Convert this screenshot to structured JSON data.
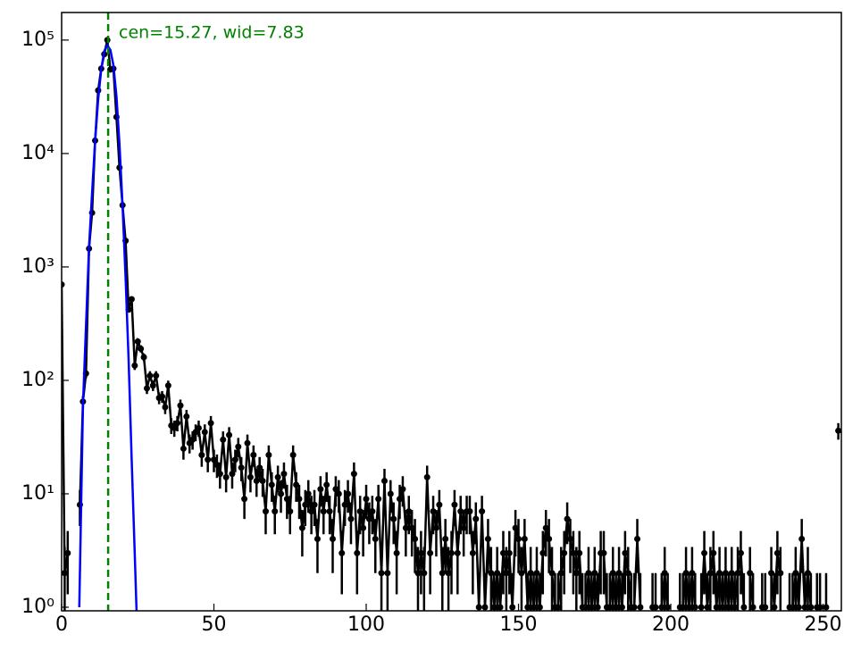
{
  "chart_data": {
    "type": "errorbar",
    "annotation": "cen=15.27, wid=7.83",
    "vline": {
      "x": 15.27,
      "color": "#008000"
    },
    "xlim": [
      0,
      256
    ],
    "xticks": [
      0,
      50,
      100,
      150,
      200,
      250
    ],
    "ylim": [
      0.93,
      175000
    ],
    "log_y": true,
    "yticks": [
      {
        "value": 1,
        "label": "10⁰"
      },
      {
        "value": 10,
        "label": "10¹"
      },
      {
        "value": 100,
        "label": "10²"
      },
      {
        "value": 1000,
        "label": "10³"
      },
      {
        "value": 10000,
        "label": "10⁴"
      },
      {
        "value": 100000,
        "label": "10⁵"
      }
    ],
    "series": [
      {
        "color": "#000000",
        "x": [
          0,
          1,
          2,
          3,
          4,
          5,
          6,
          7,
          8,
          9,
          10,
          11,
          12,
          13,
          14,
          15,
          16,
          17,
          18,
          19,
          20,
          21,
          22,
          23,
          24,
          25,
          26,
          27,
          28,
          29,
          30,
          31,
          32,
          33,
          34,
          35,
          36,
          37,
          38,
          39,
          40,
          41,
          42,
          43,
          44,
          45,
          46,
          47,
          48,
          49,
          50,
          51,
          52,
          53,
          54,
          55,
          56,
          57,
          58,
          59,
          60,
          61,
          62,
          63,
          64,
          65,
          66,
          67,
          68,
          69,
          70,
          71,
          72,
          73,
          74,
          75,
          76,
          77,
          78,
          79,
          80,
          81,
          82,
          83,
          84,
          85,
          86,
          87,
          88,
          89,
          90,
          91,
          92,
          93,
          94,
          95,
          96,
          97,
          98,
          99,
          100,
          101,
          102,
          103,
          104,
          105,
          106,
          107,
          108,
          109,
          110,
          111,
          112,
          113,
          114,
          115,
          116,
          117,
          118,
          119,
          120,
          121,
          122,
          123,
          124,
          125,
          126,
          127,
          128,
          129,
          130,
          131,
          132,
          133,
          134,
          135,
          136,
          137,
          138,
          139,
          140,
          141,
          142,
          143,
          144,
          145,
          146,
          147,
          148,
          149,
          150,
          151,
          152,
          153,
          154,
          155,
          156,
          157,
          158,
          159,
          160,
          161,
          162,
          163,
          164,
          165,
          166,
          167,
          168,
          169,
          170,
          171,
          172,
          173,
          174,
          175,
          176,
          177,
          178,
          179,
          180,
          181,
          182,
          183,
          184,
          185,
          186,
          187,
          188,
          189,
          190,
          191,
          192,
          193,
          194,
          195,
          196,
          197,
          198,
          199,
          200,
          201,
          202,
          203,
          204,
          205,
          206,
          207,
          208,
          209,
          210,
          211,
          212,
          213,
          214,
          215,
          216,
          217,
          218,
          219,
          220,
          221,
          222,
          223,
          224,
          225,
          226,
          227,
          228,
          229,
          230,
          231,
          232,
          233,
          234,
          235,
          236,
          237,
          238,
          239,
          240,
          241,
          242,
          243,
          244,
          245,
          246,
          247,
          248,
          249,
          250,
          251,
          252,
          253,
          254,
          255
        ],
        "values": [
          700,
          2,
          3,
          null,
          null,
          null,
          8,
          65,
          115,
          1450,
          3000,
          13000,
          36000,
          56000,
          75000,
          100000,
          55000,
          56000,
          21000,
          7500,
          3500,
          1700,
          420,
          520,
          135,
          220,
          190,
          160,
          85,
          110,
          90,
          110,
          70,
          72,
          58,
          90,
          40,
          38,
          42,
          60,
          25,
          48,
          28,
          30,
          35,
          38,
          22,
          35,
          20,
          42,
          20,
          18,
          15,
          30,
          14,
          33,
          15,
          20,
          26,
          17,
          9,
          28,
          14,
          22,
          13,
          17,
          13,
          7,
          22,
          12,
          7,
          14,
          10,
          15,
          9,
          7,
          22,
          12,
          9,
          5,
          8,
          10,
          7,
          8,
          4,
          11,
          7,
          12,
          7,
          4,
          11,
          10,
          3,
          8,
          10,
          6,
          15,
          3,
          7,
          5,
          9,
          6,
          7,
          4,
          9,
          2,
          13,
          2,
          10,
          6,
          3,
          9,
          11,
          5,
          7,
          5,
          4,
          2,
          3,
          2,
          14,
          3,
          7,
          5,
          8,
          2,
          4,
          2,
          3,
          8,
          3,
          7,
          5,
          7,
          7,
          3,
          6,
          1,
          7,
          1,
          4,
          2,
          1,
          2,
          1,
          3,
          2,
          3,
          1,
          5,
          4,
          2,
          4,
          1,
          2,
          1,
          2,
          1,
          3,
          5,
          4,
          2,
          1,
          1,
          2,
          3,
          6,
          4,
          3,
          2,
          3,
          1,
          1,
          2,
          1,
          2,
          1,
          3,
          3,
          1,
          1,
          2,
          1,
          2,
          1,
          3,
          2,
          1,
          1,
          4,
          1,
          null,
          null,
          null,
          1,
          1,
          null,
          1,
          2,
          1,
          null,
          null,
          null,
          1,
          1,
          2,
          1,
          2,
          1,
          null,
          1,
          3,
          1,
          2,
          3,
          1,
          2,
          1,
          2,
          1,
          2,
          1,
          2,
          3,
          1,
          null,
          2,
          1,
          null,
          null,
          1,
          1,
          null,
          2,
          1,
          3,
          2,
          null,
          null,
          1,
          1,
          2,
          1,
          4,
          1,
          2,
          1,
          null,
          1,
          1,
          null,
          1,
          null,
          null,
          null,
          36
        ],
        "errors": [
          26.5,
          1.4,
          1.7,
          null,
          null,
          null,
          2.8,
          8.1,
          10.7,
          38,
          55,
          114,
          190,
          237,
          274,
          316,
          235,
          237,
          145,
          87,
          59,
          41,
          20.5,
          22.8,
          11.6,
          14.8,
          13.8,
          12.6,
          9.2,
          10.5,
          9.5,
          10.5,
          8.4,
          8.5,
          7.6,
          9.5,
          6.3,
          6.2,
          6.5,
          7.7,
          5,
          6.9,
          5.3,
          5.5,
          5.9,
          6.2,
          4.7,
          5.9,
          4.5,
          6.5,
          4.5,
          4.2,
          3.9,
          5.5,
          3.7,
          5.7,
          3.9,
          4.5,
          5.1,
          4.1,
          3,
          5.3,
          3.7,
          4.7,
          3.6,
          4.1,
          3.6,
          2.6,
          4.7,
          3.5,
          2.6,
          3.7,
          3.2,
          3.9,
          3,
          2.6,
          4.7,
          3.5,
          3,
          2.2,
          2.8,
          3.2,
          2.6,
          2.8,
          2,
          3.3,
          2.6,
          3.5,
          2.6,
          2,
          3.3,
          3.2,
          1.7,
          2.8,
          3.2,
          2.4,
          3.9,
          1.7,
          2.6,
          2.2,
          3,
          2.4,
          2.6,
          2,
          3,
          1.4,
          3.6,
          1.4,
          3.2,
          2.4,
          1.7,
          3,
          3.3,
          2.2,
          2.6,
          2.2,
          2,
          1.4,
          1.7,
          1.4,
          3.7,
          1.7,
          2.6,
          2.2,
          2.8,
          1.4,
          2,
          1.4,
          1.7,
          2.8,
          1.7,
          2.6,
          2.2,
          2.6,
          2.6,
          1.7,
          2.4,
          1,
          2.6,
          1,
          2,
          1.4,
          1,
          1.4,
          1,
          1.7,
          1.4,
          1.7,
          1,
          2.2,
          2,
          1.4,
          2,
          1,
          1.4,
          1,
          1.4,
          1,
          1.7,
          2.2,
          2,
          1.4,
          1,
          1,
          1.4,
          1.7,
          2.4,
          2,
          1.7,
          1.4,
          1.7,
          1,
          1,
          1.4,
          1,
          1.4,
          1,
          1.7,
          1.7,
          1,
          1,
          1.4,
          1,
          1.4,
          1,
          1.7,
          1.4,
          1,
          1,
          2,
          1,
          null,
          null,
          null,
          1,
          1,
          null,
          1,
          1.4,
          1,
          null,
          null,
          null,
          1,
          1,
          1.4,
          1,
          1.4,
          1,
          null,
          1,
          1.7,
          1,
          1.4,
          1.7,
          1,
          1.4,
          1,
          1.4,
          1,
          1.4,
          1,
          1.4,
          1.7,
          1,
          null,
          1.4,
          1,
          null,
          null,
          1,
          1,
          null,
          1.4,
          1,
          1.7,
          1.4,
          null,
          null,
          1,
          1,
          1.4,
          1,
          2,
          1,
          1.4,
          1,
          null,
          1,
          1,
          null,
          1,
          null,
          null,
          null,
          6
        ]
      },
      {
        "color": "#0000ff",
        "x": [
          5.8,
          7,
          8,
          9,
          10,
          11,
          12,
          13,
          14,
          15,
          16,
          17,
          18,
          19,
          20,
          21,
          22,
          23,
          24,
          24.6
        ],
        "values": [
          1,
          60,
          300,
          1500,
          4500,
          13000,
          30000,
          55000,
          80000,
          90000,
          82000,
          60000,
          32000,
          12000,
          3500,
          800,
          150,
          20,
          3,
          0.93
        ]
      }
    ]
  }
}
